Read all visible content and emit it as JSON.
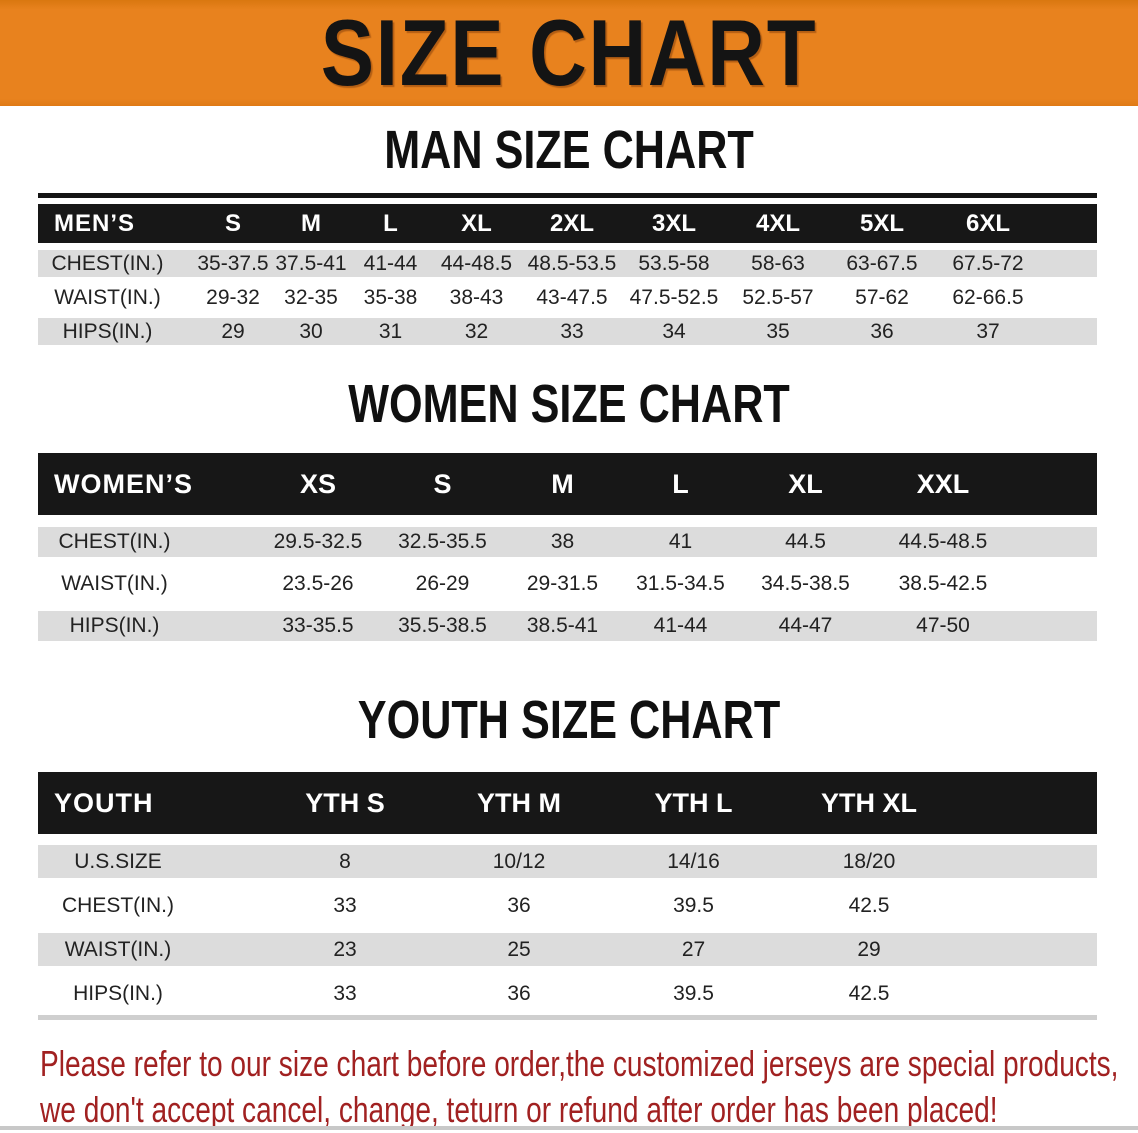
{
  "banner": {
    "title": "SIZE CHART",
    "bg_color": "#E8821E"
  },
  "sections": [
    {
      "title": "MAN SIZE CHART",
      "header_label": "MEN’S",
      "columns": [
        "S",
        "M",
        "L",
        "XL",
        "2XL",
        "3XL",
        "4XL",
        "5XL",
        "6XL"
      ],
      "rows": [
        {
          "label": "CHEST(IN.)",
          "values": [
            "35-37.5",
            "37.5-41",
            "41-44",
            "44-48.5",
            "48.5-53.5",
            "53.5-58",
            "58-63",
            "63-67.5",
            "67.5-72"
          ]
        },
        {
          "label": "WAIST(IN.)",
          "values": [
            "29-32",
            "32-35",
            "35-38",
            "38-43",
            "43-47.5",
            "47.5-52.5",
            "52.5-57",
            "57-62",
            "62-66.5"
          ]
        },
        {
          "label": "HIPS(IN.)",
          "values": [
            "29",
            "30",
            "31",
            "32",
            "33",
            "34",
            "35",
            "36",
            "37"
          ]
        }
      ]
    },
    {
      "title": "WOMEN SIZE CHART",
      "header_label": "WOMEN’S",
      "columns": [
        "XS",
        "S",
        "M",
        "L",
        "XL",
        "XXL"
      ],
      "rows": [
        {
          "label": "CHEST(IN.)",
          "values": [
            "29.5-32.5",
            "32.5-35.5",
            "38",
            "41",
            "44.5",
            "44.5-48.5"
          ]
        },
        {
          "label": "WAIST(IN.)",
          "values": [
            "23.5-26",
            "26-29",
            "29-31.5",
            "31.5-34.5",
            "34.5-38.5",
            "38.5-42.5"
          ]
        },
        {
          "label": "HIPS(IN.)",
          "values": [
            "33-35.5",
            "35.5-38.5",
            "38.5-41",
            "41-44",
            "44-47",
            "47-50"
          ]
        }
      ]
    },
    {
      "title": "YOUTH SIZE CHART",
      "header_label": "YOUTH",
      "columns": [
        "YTH S",
        "YTH M",
        "YTH L",
        "YTH XL"
      ],
      "rows": [
        {
          "label": "U.S.SIZE",
          "values": [
            "8",
            "10/12",
            "14/16",
            "18/20"
          ]
        },
        {
          "label": "CHEST(IN.)",
          "values": [
            "33",
            "36",
            "39.5",
            "42.5"
          ]
        },
        {
          "label": "WAIST(IN.)",
          "values": [
            "23",
            "25",
            "27",
            "29"
          ]
        },
        {
          "label": "HIPS(IN.)",
          "values": [
            "33",
            "36",
            "39.5",
            "42.5"
          ]
        }
      ]
    }
  ],
  "footer": {
    "line1": "Please refer to our size chart before order,the customized jerseys are special products,",
    "line2": "we don't accept cancel, change, teturn or refund after order has been placed!",
    "text_color": "#A12121"
  }
}
